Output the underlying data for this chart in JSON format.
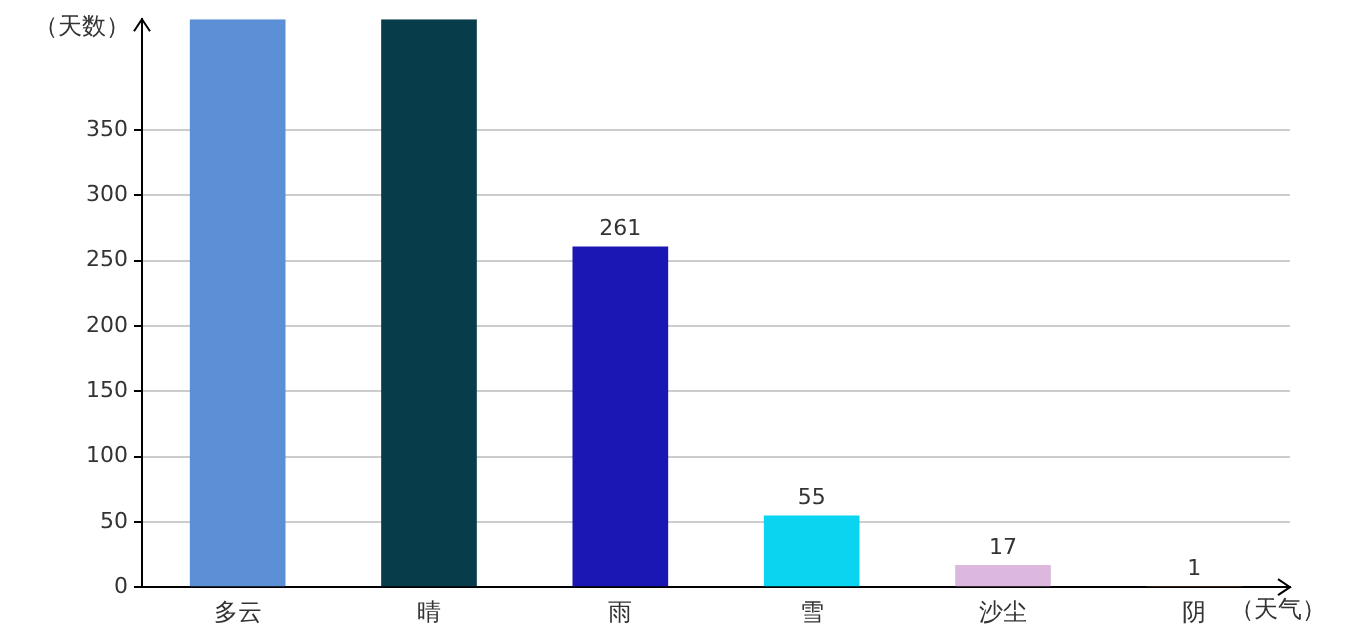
{
  "chart_data": {
    "type": "bar",
    "xlabel": "（天气）",
    "ylabel": "（天数）",
    "categories": [
      "多云",
      "晴",
      "雨",
      "雪",
      "沙尘",
      "阴"
    ],
    "values": [
      435,
      435,
      261,
      55,
      17,
      1
    ],
    "colors": [
      "#5b8fd6",
      "#073d4a",
      "#1a17b5",
      "#0bd4f0",
      "#dcb8de",
      "#c8702a"
    ],
    "value_labels": [
      null,
      null,
      "261",
      "55",
      "17",
      "1"
    ],
    "ylim": [
      0,
      435
    ],
    "yticks": [
      0,
      50,
      100,
      150,
      200,
      250,
      300,
      350
    ],
    "grid": "y",
    "legend": false
  }
}
